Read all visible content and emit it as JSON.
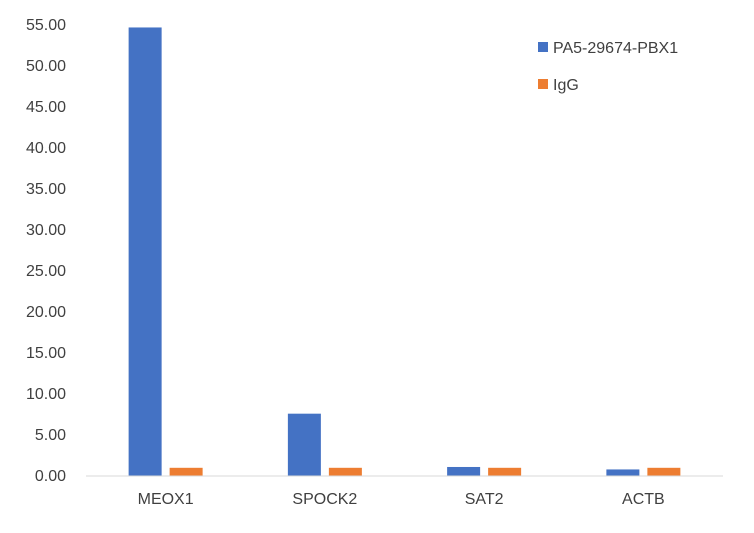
{
  "chart_data": {
    "type": "bar",
    "categories": [
      "MEOX1",
      "SPOCK2",
      "SAT2",
      "ACTB"
    ],
    "series": [
      {
        "name": "PA5-29674-PBX1",
        "color": "#4472C4",
        "values": [
          54.7,
          7.6,
          1.1,
          0.8
        ]
      },
      {
        "name": "IgG",
        "color": "#ED7D31",
        "values": [
          1.0,
          1.0,
          1.0,
          1.0
        ]
      }
    ],
    "yticks": [
      "0.00",
      "5.00",
      "10.00",
      "15.00",
      "20.00",
      "25.00",
      "30.00",
      "35.00",
      "40.00",
      "45.00",
      "50.00",
      "55.00"
    ],
    "ylim": [
      0,
      55
    ],
    "grid": false,
    "legend_position": "top-right"
  }
}
